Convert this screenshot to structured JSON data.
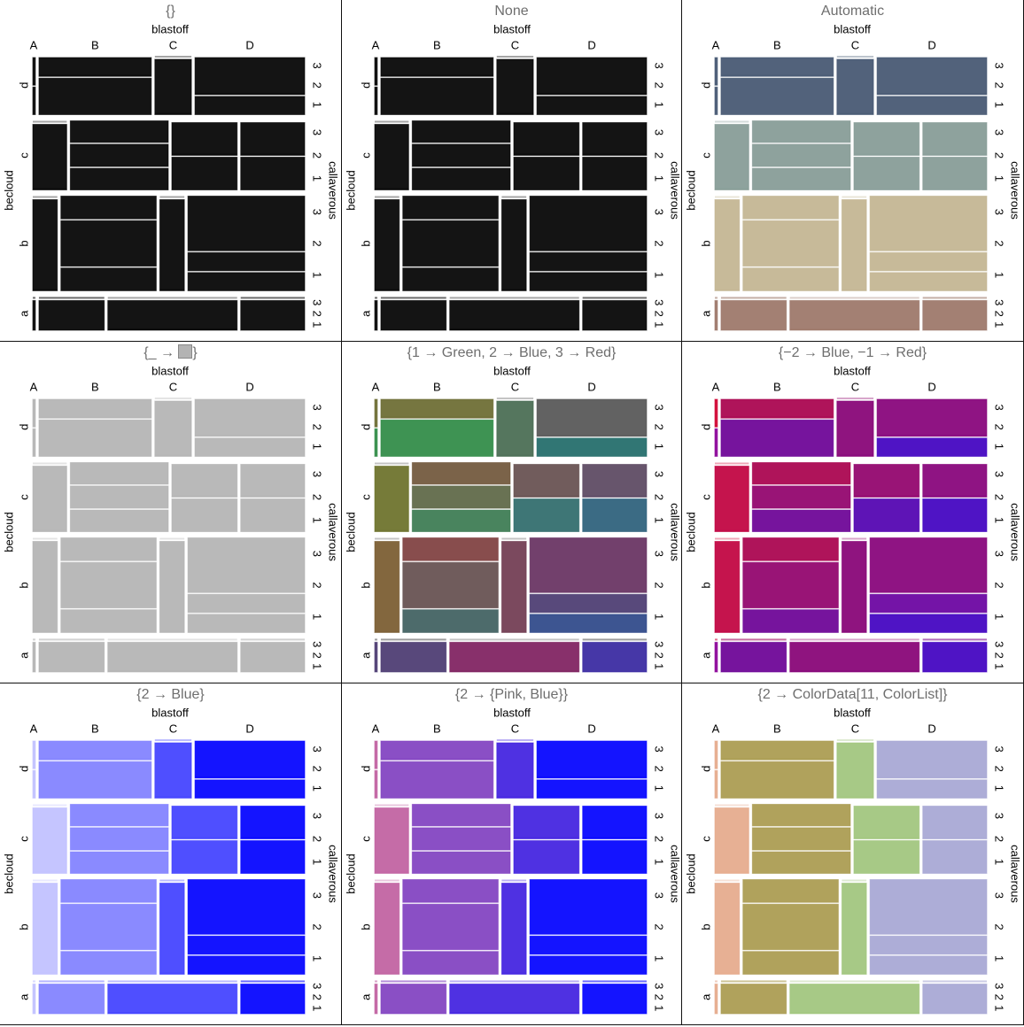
{
  "chart_data": {
    "type": "mosaic",
    "x_variable": "blastoff",
    "y_variable": "becloud",
    "z_variable": "callaverous",
    "column_labels": [
      "A",
      "B",
      "C",
      "D"
    ],
    "level_labels": [
      "1",
      "2",
      "3"
    ],
    "rows": [
      {
        "label": "a",
        "fraction": 0.13,
        "cells": [
          {
            "col": "A",
            "fraction": 0.01,
            "levels": [
              1,
              0,
              0
            ]
          },
          {
            "col": "B",
            "fraction": 0.25,
            "levels": [
              1,
              0,
              0
            ]
          },
          {
            "col": "C",
            "fraction": 0.495,
            "levels": [
              0,
              1,
              0
            ]
          },
          {
            "col": "D",
            "fraction": 0.245,
            "levels": [
              1,
              0,
              0
            ]
          }
        ]
      },
      {
        "label": "b",
        "fraction": 0.37,
        "cells": [
          {
            "col": "A",
            "fraction": 0.094,
            "levels": [
              0,
              1,
              0
            ]
          },
          {
            "col": "B",
            "fraction": 0.365,
            "levels": [
              0.25,
              0.5,
              0.25
            ]
          },
          {
            "col": "C",
            "fraction": 0.094,
            "levels": [
              0,
              1,
              0
            ]
          },
          {
            "col": "D",
            "fraction": 0.447,
            "levels": [
              0.2,
              0.2,
              0.6
            ]
          }
        ]
      },
      {
        "label": "c",
        "fraction": 0.27,
        "cells": [
          {
            "col": "A",
            "fraction": 0.13,
            "levels": [
              0,
              1,
              0
            ]
          },
          {
            "col": "B",
            "fraction": 0.375,
            "levels": [
              0.33,
              0.34,
              0.33
            ]
          },
          {
            "col": "C",
            "fraction": 0.25,
            "levels": [
              0.5,
              0,
              0.5
            ]
          },
          {
            "col": "D",
            "fraction": 0.245,
            "levels": [
              0.5,
              0,
              0.5
            ]
          }
        ]
      },
      {
        "label": "d",
        "fraction": 0.23,
        "cells": [
          {
            "col": "A",
            "fraction": 0.01,
            "levels": [
              0.5,
              0,
              0.5
            ]
          },
          {
            "col": "B",
            "fraction": 0.43,
            "levels": [
              0.66,
              0,
              0.34
            ]
          },
          {
            "col": "C",
            "fraction": 0.14,
            "levels": [
              0,
              1,
              0
            ]
          },
          {
            "col": "D",
            "fraction": 0.42,
            "levels": [
              0.33,
              0,
              0.67
            ]
          }
        ]
      }
    ],
    "panels": [
      {
        "title": "{}",
        "rule": "constant",
        "color": "#000000"
      },
      {
        "title": "None",
        "rule": "constant",
        "color": "#000000"
      },
      {
        "title": "Automatic",
        "rule": "row",
        "colors": {
          "a": "#9b7567",
          "b": "#c2b490",
          "c": "#849a95",
          "d": "#435570"
        }
      },
      {
        "title_prefix": "{_ → ",
        "title_suffix": "}",
        "rule": "constant",
        "color": "#b3b3b3"
      },
      {
        "title": "{1 → Green, 2 → Blue, 3 → Red}",
        "rule": "cell",
        "default": "#555555",
        "colors": {
          "d-A-1": "#2e8a44",
          "d-A-3": "#6a6a30",
          "d-B-3": "#6a6a30",
          "d-B-1": "#2e8a44",
          "d-C-2": "#466a50",
          "d-D-3": "#555555",
          "d-D-1": "#206a68",
          "c-A-2": "#6a7028",
          "c-B-3": "#70563a",
          "c-B-2": "#5c6644",
          "c-B-1": "#3a7a50",
          "c-C-3": "#654e4e",
          "c-C-1": "#2e6a6a",
          "c-D-3": "#5a4660",
          "c-D-1": "#2a5e7a",
          "b-A-2": "#785a2e",
          "b-B-3": "#7e3e3e",
          "b-B-2": "#644e4e",
          "b-B-1": "#3e5e5e",
          "b-C-2": "#703a50",
          "b-D-3": "#663060",
          "b-D-2": "#4a3a70",
          "b-D-1": "#2c4688",
          "a-A-1": "#4a3870",
          "a-B-1": "#4a3870",
          "a-C-2": "#7e1e5e",
          "a-D-1": "#3626a0"
        }
      },
      {
        "title": "{−2 → Blue, −1 → Red}",
        "rule": "col_level",
        "colors": {
          "A-1": "#8a0098",
          "A-2": "#c0003e",
          "A-3": "#d00030",
          "B-1": "#6a0095",
          "B-2": "#90006a",
          "B-3": "#a8004c",
          "C-1": "#5000b0",
          "C-2": "#860074",
          "C-3": "#90006a",
          "D-1": "#4000c0",
          "D-2": "#6800a0",
          "D-3": "#850078"
        }
      },
      {
        "title": "{2 → Blue}",
        "rule": "col",
        "colors": {
          "A": "#c0c0ff",
          "B": "#8080ff",
          "C": "#4040ff",
          "D": "#0000ff"
        }
      },
      {
        "title": "{2 → {Pink, Blue}}",
        "rule": "col",
        "colors": {
          "A": "#c060a0",
          "B": "#8040c0",
          "C": "#4020e0",
          "D": "#0000ff"
        }
      },
      {
        "title": "{2 → ColorData[11, ColorList]}",
        "rule": "col",
        "colors": {
          "A": "#e5a98b",
          "B": "#a99a4e",
          "C": "#a0c47c",
          "D": "#a6a6d4"
        }
      }
    ]
  }
}
